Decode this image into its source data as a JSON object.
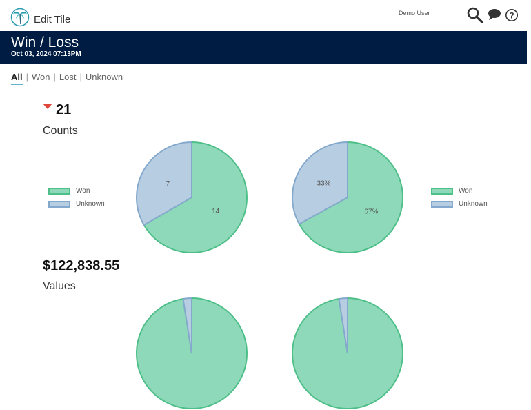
{
  "topbar": {
    "app_title": "Edit Tile",
    "user_name": "Demo User",
    "icons": [
      "palm-tree-logo",
      "search-icon",
      "chat-icon",
      "help-icon"
    ]
  },
  "header": {
    "title": "Win / Loss",
    "date": "Oct 03, 2024 07:13PM"
  },
  "tabs": [
    {
      "label": "All",
      "active": true
    },
    {
      "label": "Won",
      "active": false
    },
    {
      "label": "Lost",
      "active": false
    },
    {
      "label": "Unknown",
      "active": false
    }
  ],
  "counts_section": {
    "kpi": "21",
    "trend": "down",
    "label": "Counts"
  },
  "values_section": {
    "kpi": "$122,838.55",
    "label": "Values"
  },
  "colors": {
    "won_fill": "#8ed9b9",
    "won_stroke": "#4fbf89",
    "unknown_fill": "#b7cde2",
    "unknown_stroke": "#85a9cc",
    "header_bg": "#001c42",
    "trend_down": "#e0463a"
  },
  "legend": [
    {
      "label": "Won"
    },
    {
      "label": "Unknown"
    }
  ],
  "chart_data": [
    {
      "type": "pie",
      "categories": [
        "Won",
        "Unknown"
      ],
      "values": [
        14,
        7
      ],
      "slice_labels": [
        "14",
        "7"
      ]
    },
    {
      "type": "pie",
      "categories": [
        "Won",
        "Unknown"
      ],
      "values": [
        67,
        33
      ],
      "slice_labels": [
        "67%",
        "33%"
      ]
    },
    {
      "type": "pie",
      "categories": [
        "Won",
        "Unknown"
      ],
      "values": [
        97.5,
        2.5
      ],
      "slice_labels": []
    },
    {
      "type": "pie",
      "categories": [
        "Won",
        "Unknown"
      ],
      "values": [
        97.5,
        2.5
      ],
      "slice_labels": []
    }
  ]
}
